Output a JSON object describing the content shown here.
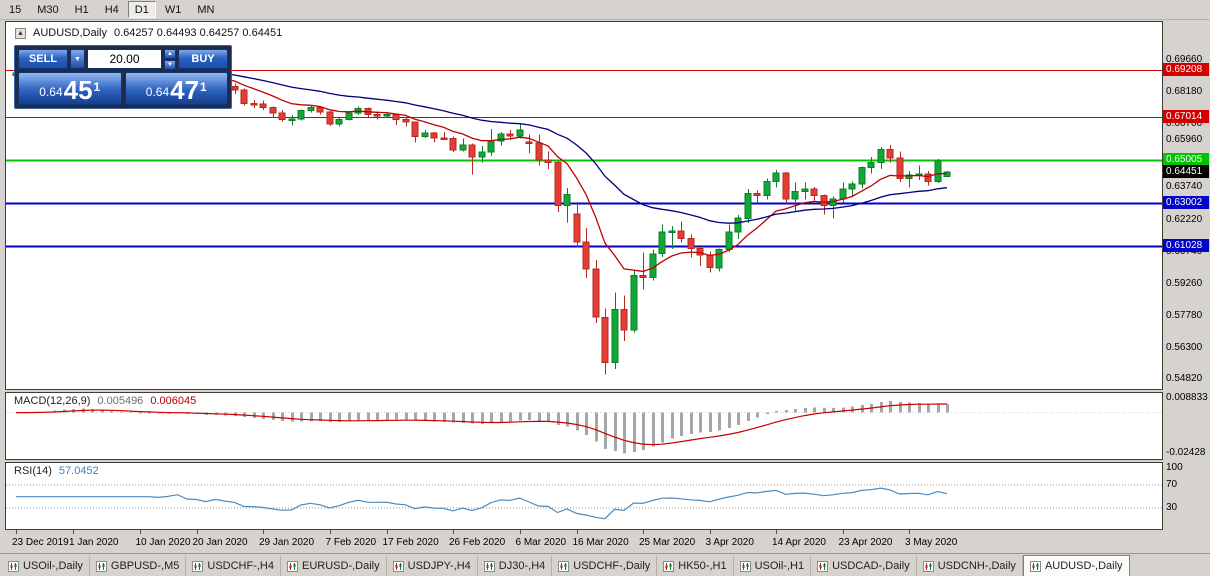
{
  "colors": {
    "bull": "#12a837",
    "bull_border": "#0b7e29",
    "bear": "#e43d33",
    "bear_border": "#b22a22",
    "accent_blue": "#1b4dab"
  },
  "toolbar": {
    "timeframes": [
      {
        "label": "15",
        "active": false
      },
      {
        "label": "M30",
        "active": false
      },
      {
        "label": "H1",
        "active": false
      },
      {
        "label": "H4",
        "active": false
      },
      {
        "label": "D1",
        "active": true
      },
      {
        "label": "W1",
        "active": false
      },
      {
        "label": "MN",
        "active": false
      }
    ]
  },
  "chart_header": {
    "symbol": "AUDUSD,Daily",
    "ohlc": "0.64257 0.64493 0.64257 0.64451"
  },
  "trade_panel": {
    "sell_label": "SELL",
    "buy_label": "BUY",
    "volume": "20.00",
    "sell_price": {
      "prefix": "0.64",
      "big": "45",
      "sup": "1"
    },
    "buy_price": {
      "prefix": "0.64",
      "big": "47",
      "sup": "1"
    }
  },
  "levels": [
    {
      "label": "0.69208",
      "value": 0.69208,
      "color": "#d40000",
      "stroke_width": 1
    },
    {
      "label": "0.67014",
      "value": 0.67014,
      "color": "#d40000",
      "stroke_width": 1
    },
    {
      "label": "0.65005",
      "value": 0.65005,
      "color": "#00c400",
      "stroke_width": 2
    },
    {
      "label": "0.63002",
      "value": 0.63002,
      "color": "#0202c8",
      "stroke_width": 2
    },
    {
      "label": "0.61028",
      "value": 0.61028,
      "color": "#0202c8",
      "stroke_width": 2
    }
  ],
  "price_axis": {
    "labels": [
      "0.69660",
      "0.68180",
      "0.66700",
      "0.65960",
      "0.63740",
      "0.62220",
      "0.60740",
      "0.59260",
      "0.57780",
      "0.56300",
      "0.54820"
    ],
    "current": {
      "label": "0.64451",
      "value": 0.64451,
      "bg": "#000000"
    }
  },
  "chart_data": {
    "type": "candlestick",
    "symbol": "AUDUSD",
    "timeframe": "Daily",
    "ylim": [
      0.54378,
      0.71426
    ],
    "x_labels": [
      {
        "label": "23 Dec 2019",
        "index": 0
      },
      {
        "label": "1 Jan 2020",
        "index": 6
      },
      {
        "label": "10 Jan 2020",
        "index": 13
      },
      {
        "label": "20 Jan 2020",
        "index": 19
      },
      {
        "label": "29 Jan 2020",
        "index": 26
      },
      {
        "label": "7 Feb 2020",
        "index": 33
      },
      {
        "label": "17 Feb 2020",
        "index": 39
      },
      {
        "label": "26 Feb 2020",
        "index": 46
      },
      {
        "label": "6 Mar 2020",
        "index": 53
      },
      {
        "label": "16 Mar 2020",
        "index": 59
      },
      {
        "label": "25 Mar 2020",
        "index": 66
      },
      {
        "label": "3 Apr 2020",
        "index": 73
      },
      {
        "label": "14 Apr 2020",
        "index": 80
      },
      {
        "label": "23 Apr 2020",
        "index": 87
      },
      {
        "label": "3 May 2020",
        "index": 94
      }
    ],
    "overlays": [
      {
        "name": "ma-fast-line",
        "type": "ema",
        "period": 10,
        "color": "#c00000"
      },
      {
        "name": "ma-slow-line",
        "type": "ema",
        "period": 30,
        "color": "#000080"
      }
    ],
    "candles": [
      [
        0.6895,
        0.6912,
        0.6876,
        0.6906
      ],
      [
        0.6906,
        0.6926,
        0.6896,
        0.6921
      ],
      [
        0.6921,
        0.6938,
        0.691,
        0.6932
      ],
      [
        0.6932,
        0.696,
        0.6925,
        0.6955
      ],
      [
        0.6955,
        0.6991,
        0.6945,
        0.6986
      ],
      [
        0.6986,
        0.7025,
        0.6978,
        0.7021
      ],
      [
        0.7021,
        0.7032,
        0.7005,
        0.7014
      ],
      [
        0.7014,
        0.7019,
        0.6988,
        0.6998
      ],
      [
        0.6998,
        0.7003,
        0.695,
        0.6953
      ],
      [
        0.6953,
        0.6963,
        0.6924,
        0.694
      ],
      [
        0.694,
        0.6946,
        0.6853,
        0.6864
      ],
      [
        0.6864,
        0.689,
        0.685,
        0.6873
      ],
      [
        0.6873,
        0.6881,
        0.6838,
        0.6856
      ],
      [
        0.6856,
        0.692,
        0.6851,
        0.6901
      ],
      [
        0.6901,
        0.6916,
        0.6879,
        0.6903
      ],
      [
        0.6903,
        0.6911,
        0.6881,
        0.6896
      ],
      [
        0.6896,
        0.6926,
        0.6883,
        0.6906
      ],
      [
        0.6906,
        0.6932,
        0.6895,
        0.6925
      ],
      [
        0.6925,
        0.6931,
        0.6869,
        0.6877
      ],
      [
        0.6877,
        0.6893,
        0.6859,
        0.6871
      ],
      [
        0.6871,
        0.6878,
        0.6836,
        0.6845
      ],
      [
        0.6845,
        0.6881,
        0.684,
        0.6866
      ],
      [
        0.6866,
        0.6871,
        0.683,
        0.6844
      ],
      [
        0.6844,
        0.6856,
        0.6808,
        0.6827
      ],
      [
        0.6827,
        0.6833,
        0.6754,
        0.6763
      ],
      [
        0.6763,
        0.6781,
        0.6742,
        0.6761
      ],
      [
        0.6761,
        0.6779,
        0.6734,
        0.6745
      ],
      [
        0.6745,
        0.6751,
        0.6699,
        0.6719
      ],
      [
        0.6719,
        0.6734,
        0.668,
        0.669
      ],
      [
        0.669,
        0.6711,
        0.6661,
        0.6693
      ],
      [
        0.6693,
        0.6736,
        0.6686,
        0.6731
      ],
      [
        0.6731,
        0.6753,
        0.6722,
        0.6746
      ],
      [
        0.6746,
        0.6751,
        0.6714,
        0.6724
      ],
      [
        0.6724,
        0.6729,
        0.666,
        0.6669
      ],
      [
        0.6669,
        0.6696,
        0.6657,
        0.6689
      ],
      [
        0.6689,
        0.6726,
        0.6684,
        0.6719
      ],
      [
        0.6719,
        0.6749,
        0.6711,
        0.6741
      ],
      [
        0.6741,
        0.6746,
        0.6699,
        0.6714
      ],
      [
        0.6714,
        0.6726,
        0.6689,
        0.6712
      ],
      [
        0.6712,
        0.6723,
        0.6697,
        0.6713
      ],
      [
        0.6713,
        0.6716,
        0.6664,
        0.6689
      ],
      [
        0.6689,
        0.6696,
        0.6657,
        0.6678
      ],
      [
        0.6678,
        0.6681,
        0.6584,
        0.6611
      ],
      [
        0.6611,
        0.6641,
        0.6604,
        0.6626
      ],
      [
        0.6626,
        0.6631,
        0.6584,
        0.6603
      ],
      [
        0.6603,
        0.6631,
        0.6594,
        0.6601
      ],
      [
        0.6601,
        0.6611,
        0.6539,
        0.6548
      ],
      [
        0.6548,
        0.6601,
        0.6541,
        0.6571
      ],
      [
        0.6571,
        0.6579,
        0.6434,
        0.6516
      ],
      [
        0.6516,
        0.6566,
        0.6489,
        0.6539
      ],
      [
        0.6539,
        0.6646,
        0.6521,
        0.6589
      ],
      [
        0.6589,
        0.6631,
        0.6569,
        0.6622
      ],
      [
        0.6622,
        0.6641,
        0.6594,
        0.6613
      ],
      [
        0.6613,
        0.6671,
        0.6601,
        0.6641
      ],
      [
        0.6586,
        0.6621,
        0.6534,
        0.6581
      ],
      [
        0.6581,
        0.6619,
        0.6476,
        0.6501
      ],
      [
        0.6501,
        0.6541,
        0.6459,
        0.6491
      ],
      [
        0.6491,
        0.6496,
        0.6259,
        0.6291
      ],
      [
        0.6291,
        0.6371,
        0.6211,
        0.6341
      ],
      [
        0.6251,
        0.6306,
        0.6094,
        0.6121
      ],
      [
        0.6121,
        0.6186,
        0.5954,
        0.5996
      ],
      [
        0.5996,
        0.6036,
        0.5744,
        0.5771
      ],
      [
        0.5771,
        0.5811,
        0.5506,
        0.5561
      ],
      [
        0.5561,
        0.5886,
        0.5531,
        0.5806
      ],
      [
        0.5806,
        0.5871,
        0.5661,
        0.5711
      ],
      [
        0.5711,
        0.5991,
        0.5701,
        0.5966
      ],
      [
        0.5966,
        0.6071,
        0.5899,
        0.5956
      ],
      [
        0.5956,
        0.6086,
        0.5941,
        0.6066
      ],
      [
        0.6066,
        0.6201,
        0.6051,
        0.6166
      ],
      [
        0.6166,
        0.6196,
        0.6089,
        0.6171
      ],
      [
        0.6171,
        0.6216,
        0.6119,
        0.6136
      ],
      [
        0.6136,
        0.6156,
        0.6049,
        0.6091
      ],
      [
        0.6091,
        0.6106,
        0.6009,
        0.6061
      ],
      [
        0.6061,
        0.6076,
        0.5979,
        0.6001
      ],
      [
        0.6001,
        0.6091,
        0.5984,
        0.6086
      ],
      [
        0.6086,
        0.6201,
        0.6074,
        0.6166
      ],
      [
        0.6166,
        0.6246,
        0.6134,
        0.6231
      ],
      [
        0.6231,
        0.6366,
        0.6209,
        0.6346
      ],
      [
        0.6346,
        0.6361,
        0.6299,
        0.6336
      ],
      [
        0.6336,
        0.6416,
        0.6319,
        0.6401
      ],
      [
        0.6401,
        0.6456,
        0.6374,
        0.6441
      ],
      [
        0.6441,
        0.6446,
        0.6299,
        0.6321
      ],
      [
        0.6321,
        0.6396,
        0.6264,
        0.6356
      ],
      [
        0.6356,
        0.6396,
        0.6319,
        0.6366
      ],
      [
        0.6366,
        0.6376,
        0.6314,
        0.6336
      ],
      [
        0.6336,
        0.6341,
        0.6249,
        0.6291
      ],
      [
        0.6291,
        0.6331,
        0.6229,
        0.6321
      ],
      [
        0.6321,
        0.6396,
        0.6304,
        0.6366
      ],
      [
        0.6366,
        0.6401,
        0.6334,
        0.6391
      ],
      [
        0.6391,
        0.6471,
        0.6369,
        0.6466
      ],
      [
        0.6466,
        0.6516,
        0.6439,
        0.6491
      ],
      [
        0.6491,
        0.6561,
        0.6459,
        0.6551
      ],
      [
        0.6551,
        0.6571,
        0.6489,
        0.6511
      ],
      [
        0.6511,
        0.6541,
        0.6399,
        0.6416
      ],
      [
        0.6416,
        0.6451,
        0.6374,
        0.6431
      ],
      [
        0.6431,
        0.6476,
        0.6409,
        0.6436
      ],
      [
        0.6436,
        0.6451,
        0.6384,
        0.6401
      ],
      [
        0.6401,
        0.6506,
        0.6394,
        0.6496
      ],
      [
        0.64257,
        0.64493,
        0.64257,
        0.64451
      ]
    ]
  },
  "macd_panel": {
    "name": "MACD(12,26,9)",
    "value_main": "0.005496",
    "value_signal": "0.006045",
    "params": {
      "fast": 12,
      "slow": 26,
      "signal": 9
    },
    "ylim": [
      -0.02777,
      0.011738
    ],
    "axis": [
      {
        "label": "0.008833",
        "value": 0.008833
      },
      {
        "label": "-0.02428",
        "value": -0.02428
      }
    ],
    "histogram_color": "#a6a6a6",
    "signal_color": "#cc0000"
  },
  "rsi_panel": {
    "name": "RSI(14)",
    "value": "57.0452",
    "period": 14,
    "levels": [
      {
        "label": "100",
        "value": 100
      },
      {
        "label": "70",
        "value": 70
      },
      {
        "label": "30",
        "value": 30
      }
    ],
    "line_color": "#4a8bc2"
  },
  "tabs": [
    {
      "label": "USOil-,Daily",
      "active": false
    },
    {
      "label": "GBPUSD-,M5",
      "active": false
    },
    {
      "label": "USDCHF-,H4",
      "active": false
    },
    {
      "label": "EURUSD-,Daily",
      "active": false
    },
    {
      "label": "USDJPY-,H4",
      "active": false
    },
    {
      "label": "DJ30-,H4",
      "active": false
    },
    {
      "label": "USDCHF-,Daily",
      "active": false
    },
    {
      "label": "HK50-,H1",
      "active": false
    },
    {
      "label": "USOil-,H1",
      "active": false
    },
    {
      "label": "USDCAD-,Daily",
      "active": false
    },
    {
      "label": "USDCNH-,Daily",
      "active": false
    },
    {
      "label": "AUDUSD-,Daily",
      "active": true
    }
  ]
}
